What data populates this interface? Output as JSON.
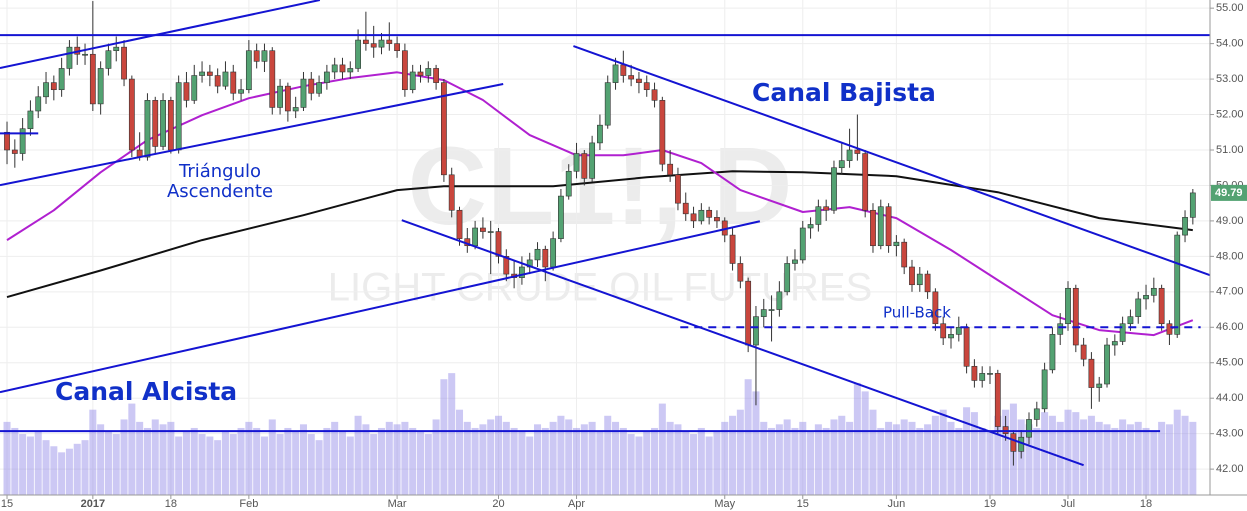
{
  "chart_data": {
    "type": "candlestick",
    "annotations": [
      "Canal Bajista",
      "Triángulo",
      "Ascendente",
      "Canal Alcista",
      "Pull-Back"
    ],
    "watermark": [
      "CL1!, D",
      "LIGHT CRUDE OIL FUTURES"
    ],
    "categories": [
      "15",
      null,
      null,
      null,
      null,
      null,
      null,
      null,
      null,
      null,
      null,
      "2017",
      null,
      null,
      null,
      null,
      null,
      null,
      null,
      null,
      null,
      "18",
      null,
      null,
      null,
      null,
      null,
      null,
      null,
      null,
      null,
      "Feb",
      null,
      null,
      null,
      null,
      null,
      null,
      null,
      null,
      null,
      null,
      null,
      null,
      null,
      null,
      null,
      null,
      null,
      null,
      "Mar",
      null,
      null,
      null,
      null,
      null,
      null,
      null,
      null,
      null,
      null,
      null,
      null,
      "20",
      null,
      null,
      null,
      null,
      null,
      null,
      null,
      null,
      null,
      "Apr",
      null,
      null,
      null,
      null,
      null,
      null,
      null,
      null,
      null,
      null,
      null,
      null,
      null,
      null,
      null,
      null,
      null,
      null,
      "May",
      null,
      null,
      null,
      null,
      null,
      null,
      null,
      null,
      null,
      "15",
      null,
      null,
      null,
      null,
      null,
      null,
      null,
      null,
      null,
      null,
      null,
      "Jun",
      null,
      null,
      null,
      null,
      null,
      null,
      null,
      null,
      null,
      null,
      null,
      "19",
      null,
      null,
      null,
      null,
      null,
      null,
      null,
      null,
      null,
      "Jul",
      null,
      null,
      null,
      null,
      null,
      null,
      null,
      null,
      null,
      "18",
      null,
      null,
      null,
      null,
      null,
      null
    ],
    "xlim": [
      -0.9,
      154.2
    ],
    "ohlc": [
      [
        51.5,
        51.8,
        50.6,
        51.0
      ],
      [
        51.0,
        51.3,
        50.5,
        50.9
      ],
      [
        50.9,
        51.9,
        50.7,
        51.6
      ],
      [
        51.6,
        52.4,
        51.4,
        52.1
      ],
      [
        52.1,
        52.8,
        51.9,
        52.5
      ],
      [
        52.5,
        53.2,
        52.3,
        52.9
      ],
      [
        52.9,
        53.1,
        52.4,
        52.7
      ],
      [
        52.7,
        53.6,
        52.5,
        53.3
      ],
      [
        53.3,
        54.1,
        53.1,
        53.9
      ],
      [
        53.9,
        54.2,
        53.4,
        53.7
      ],
      [
        53.7,
        54.0,
        53.4,
        53.7
      ],
      [
        53.7,
        55.2,
        52.1,
        52.3
      ],
      [
        52.3,
        53.5,
        52.0,
        53.3
      ],
      [
        53.3,
        54.0,
        53.1,
        53.8
      ],
      [
        53.8,
        54.2,
        53.5,
        53.9
      ],
      [
        53.9,
        54.1,
        52.8,
        53.0
      ],
      [
        53.0,
        53.1,
        50.8,
        51.0
      ],
      [
        51.0,
        51.5,
        50.7,
        50.8
      ],
      [
        50.8,
        52.6,
        50.7,
        52.4
      ],
      [
        52.4,
        52.5,
        50.9,
        51.1
      ],
      [
        51.1,
        52.6,
        51.0,
        52.4
      ],
      [
        52.4,
        52.5,
        50.9,
        51.0
      ],
      [
        51.0,
        53.1,
        50.9,
        52.9
      ],
      [
        52.9,
        53.2,
        52.2,
        52.4
      ],
      [
        52.4,
        53.4,
        52.3,
        53.1
      ],
      [
        53.1,
        53.5,
        52.9,
        53.2
      ],
      [
        53.2,
        53.4,
        52.8,
        53.1
      ],
      [
        53.1,
        53.3,
        52.6,
        52.8
      ],
      [
        52.8,
        53.5,
        52.7,
        53.2
      ],
      [
        53.2,
        53.4,
        52.4,
        52.6
      ],
      [
        52.6,
        53.0,
        52.4,
        52.7
      ],
      [
        52.7,
        54.1,
        52.6,
        53.8
      ],
      [
        53.8,
        54.0,
        53.3,
        53.5
      ],
      [
        53.5,
        54.0,
        53.2,
        53.8
      ],
      [
        53.8,
        53.9,
        52.0,
        52.2
      ],
      [
        52.2,
        53.0,
        52.0,
        52.8
      ],
      [
        52.8,
        52.9,
        51.8,
        52.1
      ],
      [
        52.1,
        52.5,
        51.9,
        52.2
      ],
      [
        52.2,
        53.2,
        52.1,
        53.0
      ],
      [
        53.0,
        53.2,
        52.4,
        52.6
      ],
      [
        52.6,
        53.1,
        52.5,
        52.9
      ],
      [
        52.9,
        53.4,
        52.7,
        53.2
      ],
      [
        53.2,
        53.6,
        53.0,
        53.4
      ],
      [
        53.4,
        53.6,
        53.0,
        53.2
      ],
      [
        53.2,
        53.5,
        53.0,
        53.3
      ],
      [
        53.3,
        54.4,
        53.2,
        54.1
      ],
      [
        54.1,
        54.9,
        53.8,
        54.0
      ],
      [
        54.0,
        54.5,
        53.6,
        53.9
      ],
      [
        53.9,
        54.3,
        53.7,
        54.1
      ],
      [
        54.1,
        54.6,
        53.8,
        54.0
      ],
      [
        54.0,
        54.2,
        53.6,
        53.8
      ],
      [
        53.8,
        54.0,
        52.5,
        52.7
      ],
      [
        52.7,
        53.4,
        52.6,
        53.2
      ],
      [
        53.2,
        53.4,
        52.9,
        53.1
      ],
      [
        53.1,
        53.5,
        52.9,
        53.3
      ],
      [
        53.3,
        53.4,
        52.7,
        52.9
      ],
      [
        52.9,
        53.0,
        50.1,
        50.3
      ],
      [
        50.3,
        50.5,
        49.1,
        49.3
      ],
      [
        49.3,
        49.4,
        48.3,
        48.5
      ],
      [
        48.5,
        48.8,
        48.1,
        48.3
      ],
      [
        48.3,
        49.0,
        48.2,
        48.8
      ],
      [
        48.8,
        49.1,
        48.5,
        48.7
      ],
      [
        48.7,
        49.0,
        47.5,
        48.7
      ],
      [
        48.7,
        48.8,
        47.8,
        48.0
      ],
      [
        48.0,
        48.2,
        47.3,
        47.5
      ],
      [
        47.5,
        47.9,
        47.1,
        47.4
      ],
      [
        47.4,
        48.0,
        47.2,
        47.7
      ],
      [
        47.7,
        48.1,
        47.5,
        47.9
      ],
      [
        47.9,
        48.4,
        47.7,
        48.2
      ],
      [
        48.2,
        48.3,
        47.3,
        47.7
      ],
      [
        47.7,
        48.7,
        47.6,
        48.5
      ],
      [
        48.5,
        49.9,
        48.4,
        49.7
      ],
      [
        49.7,
        50.6,
        49.6,
        50.4
      ],
      [
        50.4,
        51.2,
        50.2,
        50.9
      ],
      [
        50.9,
        51.0,
        50.0,
        50.2
      ],
      [
        50.2,
        51.4,
        50.1,
        51.2
      ],
      [
        51.2,
        52.0,
        51.0,
        51.7
      ],
      [
        51.7,
        53.1,
        51.6,
        52.9
      ],
      [
        52.9,
        53.6,
        52.7,
        53.4
      ],
      [
        53.4,
        53.8,
        52.9,
        53.1
      ],
      [
        53.1,
        53.4,
        52.8,
        53.0
      ],
      [
        53.0,
        53.2,
        52.6,
        52.9
      ],
      [
        52.9,
        53.1,
        52.5,
        52.7
      ],
      [
        52.7,
        52.9,
        52.2,
        52.4
      ],
      [
        52.4,
        52.5,
        50.4,
        50.6
      ],
      [
        50.6,
        51.0,
        50.1,
        50.3
      ],
      [
        50.3,
        50.5,
        49.3,
        49.5
      ],
      [
        49.5,
        49.8,
        49.0,
        49.2
      ],
      [
        49.2,
        49.4,
        48.8,
        49.0
      ],
      [
        49.0,
        49.5,
        48.9,
        49.3
      ],
      [
        49.3,
        49.4,
        48.9,
        49.1
      ],
      [
        49.1,
        49.3,
        48.8,
        49.0
      ],
      [
        49.0,
        49.1,
        48.4,
        48.6
      ],
      [
        48.6,
        48.8,
        47.6,
        47.8
      ],
      [
        47.8,
        48.0,
        47.1,
        47.3
      ],
      [
        47.3,
        47.4,
        45.3,
        45.5
      ],
      [
        45.5,
        46.6,
        43.8,
        46.3
      ],
      [
        46.3,
        46.8,
        46.0,
        46.5
      ],
      [
        46.5,
        46.9,
        45.6,
        46.5
      ],
      [
        46.5,
        47.3,
        46.3,
        47.0
      ],
      [
        47.0,
        48.0,
        46.9,
        47.8
      ],
      [
        47.8,
        48.2,
        47.6,
        47.9
      ],
      [
        47.9,
        49.0,
        47.8,
        48.8
      ],
      [
        48.8,
        49.1,
        48.5,
        48.9
      ],
      [
        48.9,
        49.6,
        48.7,
        49.4
      ],
      [
        49.4,
        49.6,
        49.0,
        49.3
      ],
      [
        49.3,
        50.7,
        49.2,
        50.5
      ],
      [
        50.5,
        51.2,
        50.3,
        50.7
      ],
      [
        50.7,
        51.6,
        50.5,
        51.0
      ],
      [
        51.0,
        52.0,
        50.7,
        50.9
      ],
      [
        50.9,
        51.0,
        49.1,
        49.3
      ],
      [
        49.3,
        49.5,
        48.1,
        48.3
      ],
      [
        48.3,
        49.6,
        48.2,
        49.4
      ],
      [
        49.4,
        49.5,
        48.1,
        48.3
      ],
      [
        48.3,
        48.6,
        48.0,
        48.4
      ],
      [
        48.4,
        48.5,
        47.5,
        47.7
      ],
      [
        47.7,
        47.9,
        47.0,
        47.2
      ],
      [
        47.2,
        47.7,
        47.0,
        47.5
      ],
      [
        47.5,
        47.6,
        46.8,
        47.0
      ],
      [
        47.0,
        47.1,
        45.9,
        46.1
      ],
      [
        46.1,
        46.3,
        45.5,
        45.7
      ],
      [
        45.7,
        46.0,
        45.4,
        45.8
      ],
      [
        45.8,
        46.3,
        45.6,
        46.0
      ],
      [
        46.0,
        46.1,
        44.7,
        44.9
      ],
      [
        44.9,
        45.1,
        44.3,
        44.5
      ],
      [
        44.5,
        44.9,
        44.3,
        44.7
      ],
      [
        44.7,
        44.9,
        44.4,
        44.7
      ],
      [
        44.7,
        44.8,
        43.0,
        43.2
      ],
      [
        43.2,
        43.5,
        42.8,
        43.0
      ],
      [
        43.0,
        43.1,
        42.1,
        42.5
      ],
      [
        42.5,
        43.1,
        42.3,
        42.9
      ],
      [
        42.9,
        43.6,
        42.7,
        43.4
      ],
      [
        43.4,
        43.9,
        43.2,
        43.7
      ],
      [
        43.7,
        45.0,
        43.6,
        44.8
      ],
      [
        44.8,
        46.0,
        44.7,
        45.8
      ],
      [
        45.8,
        46.4,
        45.5,
        46.1
      ],
      [
        46.1,
        47.3,
        45.9,
        47.1
      ],
      [
        47.1,
        47.2,
        45.3,
        45.5
      ],
      [
        45.5,
        45.7,
        44.9,
        45.1
      ],
      [
        45.1,
        45.3,
        43.7,
        44.3
      ],
      [
        44.3,
        44.6,
        43.9,
        44.4
      ],
      [
        44.4,
        45.7,
        44.3,
        45.5
      ],
      [
        45.5,
        45.8,
        45.2,
        45.6
      ],
      [
        45.6,
        46.3,
        45.5,
        46.1
      ],
      [
        46.1,
        46.5,
        45.9,
        46.3
      ],
      [
        46.3,
        47.0,
        46.1,
        46.8
      ],
      [
        46.8,
        47.2,
        46.5,
        46.9
      ],
      [
        46.9,
        47.4,
        46.7,
        47.1
      ],
      [
        47.1,
        47.2,
        45.9,
        46.1
      ],
      [
        46.1,
        46.2,
        45.5,
        45.8
      ],
      [
        45.8,
        48.7,
        45.7,
        48.6
      ],
      [
        48.6,
        49.3,
        48.4,
        49.1
      ],
      [
        49.1,
        49.9,
        48.9,
        49.79
      ]
    ],
    "volume": [
      60,
      55,
      50,
      48,
      52,
      45,
      40,
      35,
      38,
      42,
      45,
      70,
      58,
      52,
      50,
      62,
      75,
      60,
      55,
      62,
      58,
      60,
      48,
      52,
      55,
      50,
      48,
      45,
      52,
      50,
      55,
      60,
      55,
      48,
      62,
      50,
      55,
      52,
      58,
      50,
      45,
      55,
      60,
      52,
      48,
      65,
      58,
      50,
      55,
      60,
      58,
      60,
      55,
      52,
      50,
      62,
      95,
      100,
      70,
      60,
      55,
      58,
      62,
      65,
      60,
      55,
      52,
      48,
      58,
      55,
      60,
      65,
      62,
      55,
      58,
      60,
      52,
      65,
      60,
      55,
      50,
      48,
      52,
      55,
      75,
      60,
      58,
      52,
      50,
      55,
      48,
      52,
      60,
      65,
      70,
      95,
      85,
      60,
      55,
      58,
      62,
      55,
      60,
      52,
      58,
      55,
      62,
      65,
      60,
      92,
      85,
      70,
      55,
      60,
      58,
      62,
      60,
      55,
      58,
      65,
      70,
      60,
      55,
      72,
      68,
      55,
      52,
      65,
      70,
      75,
      62,
      58,
      55,
      68,
      65,
      60,
      70,
      68,
      62,
      65,
      60,
      58,
      55,
      62,
      58,
      60,
      55,
      52,
      60,
      58,
      70,
      65,
      60
    ],
    "vlim": [
      0,
      160
    ],
    "up_color": "#53a272",
    "down_color": "#c9463d",
    "volume_color": "#8f86e6",
    "moving_averages": [
      {
        "color": "#111111",
        "x": [
          0,
          12,
          25,
          38,
          50,
          56,
          70,
          82,
          93,
          102,
          114,
          127,
          140,
          152
        ],
        "values": [
          46.85,
          47.6,
          48.46,
          49.16,
          49.87,
          49.98,
          49.98,
          50.23,
          50.4,
          50.37,
          50.26,
          49.81,
          49.08,
          48.74
        ]
      },
      {
        "color": "#b020d0",
        "x": [
          0,
          6,
          12,
          18,
          25,
          31,
          38,
          44,
          50,
          56,
          61,
          67,
          73,
          79,
          84,
          89,
          94,
          102,
          108,
          114,
          121,
          127,
          134,
          140,
          147,
          152
        ],
        "values": [
          48.46,
          49.3,
          50.37,
          51.28,
          51.98,
          52.46,
          52.8,
          53.03,
          53.19,
          52.97,
          52.41,
          51.42,
          50.85,
          50.85,
          51.0,
          50.63,
          49.87,
          49.25,
          49.39,
          49.08,
          48.18,
          47.33,
          46.34,
          45.92,
          45.78,
          46.2
        ]
      }
    ],
    "trendline_color": "#1414d2",
    "trendlines": [
      {
        "x": [
          -0.9,
          40.1
        ],
        "y": [
          53.31,
          55.23
        ]
      },
      {
        "x": [
          -0.9,
          154.2
        ],
        "y": [
          54.24,
          54.24
        ]
      },
      {
        "x": [
          -0.9,
          63.6
        ],
        "y": [
          50.01,
          52.86
        ]
      },
      {
        "x": [
          -0.9,
          4
        ],
        "y": [
          51.47,
          51.47
        ]
      },
      {
        "x": [
          -0.9,
          96.5
        ],
        "y": [
          44.17,
          48.99
        ]
      },
      {
        "x": [
          50.6,
          138
        ],
        "y": [
          49.02,
          42.11
        ]
      },
      {
        "x": [
          72.6,
          154.2
        ],
        "y": [
          53.93,
          47.47
        ]
      },
      {
        "x": [
          86.3,
          153
        ],
        "y": [
          46.0,
          46.0
        ],
        "dashed": true
      },
      {
        "x": [
          -0.9,
          147.8
        ],
        "y": [
          43.07,
          43.07
        ]
      }
    ],
    "ylim": [
      41.27,
      55.23
    ],
    "yticks": [
      {
        "value": 42,
        "label": "42.00"
      },
      {
        "value": 43,
        "label": "43.00"
      },
      {
        "value": 44,
        "label": "44.00"
      },
      {
        "value": 45,
        "label": "45.00"
      },
      {
        "value": 46,
        "label": "46.00"
      },
      {
        "value": 47,
        "label": "47.00"
      },
      {
        "value": 48,
        "label": "48.00"
      },
      {
        "value": 49,
        "label": "49.00"
      },
      {
        "value": 50,
        "label": "50.00"
      },
      {
        "value": 51,
        "label": "51.00"
      },
      {
        "value": 52,
        "label": "52.00"
      },
      {
        "value": 53,
        "label": "53.00"
      },
      {
        "value": 54,
        "label": "54.00"
      },
      {
        "value": 55,
        "label": "55.00"
      }
    ],
    "grid": true
  }
}
